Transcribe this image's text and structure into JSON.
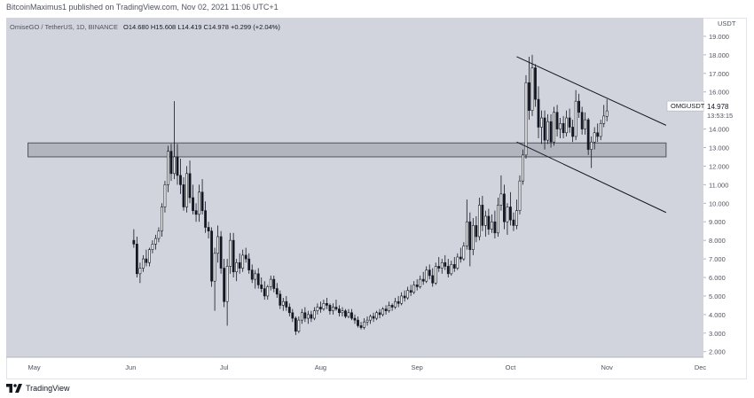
{
  "header": {
    "text": "BitcoinMaximus1 published on TradingView.com, Nov 02, 2021 11:06 UTC+1"
  },
  "footer": {
    "brand": "TradingView",
    "logo_icon": "tradingview-logo-icon"
  },
  "colors": {
    "plot_bg": "#d1d4dc",
    "candle_up": "#ffffff",
    "candle_down": "#131722",
    "wick": "#131722",
    "zone_fill": "#b2b5be",
    "zone_border": "#50535e",
    "channel_line": "#131722",
    "price_label_bg": "#ffffff"
  },
  "chart_data": {
    "type": "candlestick",
    "legend": {
      "name": "OmiseGO / TetherUS, 1D, BINANCE",
      "open": "14.680",
      "high": "15.608",
      "low": "14.419",
      "close": "14.978",
      "change": "+0.299 (+2.04%)"
    },
    "symbol_label": "OMGUSDT",
    "last_price": "14.978",
    "countdown": "13:53:15",
    "currency": "USDT",
    "y_axis": {
      "ticks": [
        "19.000",
        "18.000",
        "17.000",
        "16.000",
        "15.000",
        "14.000",
        "13.000",
        "12.000",
        "11.000",
        "10.000",
        "9.000",
        "8.000",
        "7.000",
        "6.000",
        "5.000",
        "4.000",
        "3.000",
        "2.000"
      ],
      "ylim": [
        1.7,
        20.0
      ]
    },
    "x_axis": {
      "ticks": [
        {
          "label": "May",
          "day": 0
        },
        {
          "label": "Jun",
          "day": 31
        },
        {
          "label": "Jul",
          "day": 61
        },
        {
          "label": "Aug",
          "day": 92
        },
        {
          "label": "Sep",
          "day": 123
        },
        {
          "label": "Oct",
          "day": 153
        },
        {
          "label": "Nov",
          "day": 184
        },
        {
          "label": "Dec",
          "day": 214
        }
      ],
      "day_range": [
        -9,
        215
      ]
    },
    "zone": {
      "y1": 12.5,
      "y2": 13.25,
      "day_start": -2,
      "day_end": 203
    },
    "channel": {
      "upper": {
        "day1": 155,
        "y1": 17.9,
        "day2": 203,
        "y2": 14.2
      },
      "lower": {
        "day1": 155,
        "y1": 13.3,
        "day2": 203,
        "y2": 9.5
      }
    },
    "candles": [
      [
        8.0,
        8.6,
        7.6,
        7.8
      ],
      [
        7.8,
        8.2,
        6.0,
        6.2
      ],
      [
        6.2,
        6.8,
        5.7,
        6.5
      ],
      [
        6.5,
        7.2,
        6.3,
        7.0
      ],
      [
        7.0,
        7.5,
        6.6,
        6.8
      ],
      [
        6.8,
        7.6,
        6.6,
        7.5
      ],
      [
        7.5,
        8.0,
        7.3,
        7.8
      ],
      [
        7.8,
        8.3,
        7.5,
        8.1
      ],
      [
        8.1,
        8.7,
        7.9,
        8.5
      ],
      [
        8.5,
        10.0,
        8.2,
        9.8
      ],
      [
        9.8,
        11.2,
        9.5,
        11.0
      ],
      [
        11.0,
        13.1,
        10.6,
        12.8
      ],
      [
        12.8,
        13.2,
        11.2,
        11.6
      ],
      [
        11.6,
        15.5,
        11.3,
        12.5
      ],
      [
        12.5,
        13.2,
        11.0,
        11.5
      ],
      [
        11.5,
        12.4,
        10.5,
        11.0
      ],
      [
        11.0,
        11.4,
        9.6,
        9.8
      ],
      [
        9.8,
        12.0,
        9.5,
        11.6
      ],
      [
        11.6,
        12.3,
        10.0,
        10.3
      ],
      [
        10.3,
        11.0,
        9.4,
        9.6
      ],
      [
        9.6,
        10.0,
        9.0,
        9.4
      ],
      [
        9.4,
        11.0,
        9.0,
        10.6
      ],
      [
        10.6,
        11.3,
        9.4,
        9.6
      ],
      [
        9.6,
        10.1,
        8.4,
        8.7
      ],
      [
        8.7,
        9.0,
        8.1,
        8.5
      ],
      [
        8.5,
        8.7,
        5.5,
        5.8
      ],
      [
        5.8,
        7.6,
        4.2,
        7.3
      ],
      [
        7.3,
        8.8,
        6.8,
        8.2
      ],
      [
        8.2,
        8.5,
        6.2,
        6.5
      ],
      [
        6.5,
        7.0,
        4.4,
        4.7
      ],
      [
        4.7,
        7.0,
        3.4,
        6.6
      ],
      [
        6.6,
        8.4,
        6.2,
        8.0
      ],
      [
        8.0,
        8.4,
        6.0,
        6.3
      ],
      [
        6.3,
        7.0,
        5.8,
        6.8
      ],
      [
        6.8,
        7.3,
        6.2,
        6.5
      ],
      [
        6.5,
        7.5,
        6.3,
        7.2
      ],
      [
        7.2,
        7.6,
        6.8,
        7.0
      ],
      [
        7.0,
        7.3,
        6.2,
        6.4
      ],
      [
        6.4,
        6.7,
        5.7,
        5.9
      ],
      [
        5.9,
        6.4,
        5.4,
        6.2
      ],
      [
        6.2,
        6.5,
        5.4,
        5.6
      ],
      [
        5.6,
        6.0,
        5.2,
        5.4
      ],
      [
        5.4,
        5.8,
        4.8,
        5.0
      ],
      [
        5.0,
        5.6,
        4.8,
        5.5
      ],
      [
        5.5,
        6.1,
        5.3,
        5.9
      ],
      [
        5.9,
        6.1,
        5.2,
        5.4
      ],
      [
        5.4,
        5.7,
        4.9,
        5.1
      ],
      [
        5.1,
        5.3,
        4.3,
        4.5
      ],
      [
        4.5,
        4.9,
        4.2,
        4.7
      ],
      [
        4.7,
        5.0,
        4.2,
        4.4
      ],
      [
        4.4,
        4.6,
        3.9,
        4.1
      ],
      [
        4.1,
        4.3,
        3.6,
        3.8
      ],
      [
        3.8,
        3.9,
        2.9,
        3.1
      ],
      [
        3.1,
        3.9,
        3.0,
        3.7
      ],
      [
        3.7,
        4.3,
        3.5,
        4.1
      ],
      [
        4.1,
        4.4,
        3.6,
        3.8
      ],
      [
        3.8,
        4.2,
        3.5,
        4.0
      ],
      [
        4.0,
        4.2,
        3.6,
        3.8
      ],
      [
        3.8,
        4.4,
        3.7,
        4.2
      ],
      [
        4.2,
        4.6,
        4.0,
        4.4
      ],
      [
        4.4,
        4.7,
        4.1,
        4.3
      ],
      [
        4.3,
        4.8,
        4.2,
        4.6
      ],
      [
        4.6,
        4.9,
        4.3,
        4.5
      ],
      [
        4.5,
        4.6,
        4.0,
        4.2
      ],
      [
        4.2,
        4.6,
        4.0,
        4.4
      ],
      [
        4.4,
        4.8,
        4.2,
        4.3
      ],
      [
        4.3,
        4.5,
        3.9,
        4.1
      ],
      [
        4.1,
        4.4,
        3.9,
        4.2
      ],
      [
        4.2,
        4.3,
        3.8,
        3.9
      ],
      [
        3.9,
        4.3,
        3.8,
        4.1
      ],
      [
        4.1,
        4.3,
        3.7,
        3.8
      ],
      [
        3.8,
        4.0,
        3.5,
        3.7
      ],
      [
        3.7,
        3.9,
        3.3,
        3.4
      ],
      [
        3.4,
        3.6,
        3.2,
        3.3
      ],
      [
        3.3,
        3.8,
        3.2,
        3.6
      ],
      [
        3.6,
        3.9,
        3.4,
        3.7
      ],
      [
        3.7,
        4.0,
        3.5,
        3.9
      ],
      [
        3.9,
        4.1,
        3.6,
        3.8
      ],
      [
        3.8,
        4.2,
        3.7,
        4.1
      ],
      [
        4.1,
        4.3,
        3.8,
        4.0
      ],
      [
        4.0,
        4.4,
        3.9,
        4.3
      ],
      [
        4.3,
        4.5,
        4.0,
        4.2
      ],
      [
        4.2,
        4.7,
        4.1,
        4.5
      ],
      [
        4.5,
        4.6,
        4.2,
        4.4
      ],
      [
        4.4,
        4.9,
        4.3,
        4.7
      ],
      [
        4.7,
        5.0,
        4.4,
        4.6
      ],
      [
        4.6,
        5.2,
        4.5,
        5.0
      ],
      [
        5.0,
        5.3,
        4.7,
        4.9
      ],
      [
        4.9,
        5.5,
        4.8,
        5.3
      ],
      [
        5.3,
        5.6,
        5.0,
        5.2
      ],
      [
        5.2,
        5.8,
        5.1,
        5.6
      ],
      [
        5.6,
        5.9,
        5.3,
        5.5
      ],
      [
        5.5,
        6.1,
        5.4,
        5.9
      ],
      [
        5.9,
        6.3,
        5.6,
        5.8
      ],
      [
        5.8,
        6.6,
        5.7,
        6.4
      ],
      [
        6.4,
        6.7,
        5.9,
        6.1
      ],
      [
        6.1,
        6.5,
        5.5,
        5.7
      ],
      [
        5.7,
        6.8,
        5.6,
        6.6
      ],
      [
        6.6,
        7.1,
        6.3,
        6.5
      ],
      [
        6.5,
        7.0,
        6.2,
        6.8
      ],
      [
        6.8,
        7.2,
        6.4,
        6.6
      ],
      [
        6.6,
        7.0,
        6.0,
        6.2
      ],
      [
        6.2,
        6.9,
        6.1,
        6.7
      ],
      [
        6.7,
        7.1,
        6.3,
        6.5
      ],
      [
        6.5,
        7.3,
        6.4,
        7.1
      ],
      [
        7.1,
        7.6,
        6.8,
        7.0
      ],
      [
        7.0,
        7.9,
        6.9,
        7.7
      ],
      [
        7.7,
        10.2,
        7.5,
        9.0
      ],
      [
        9.0,
        9.5,
        6.6,
        7.5
      ],
      [
        7.5,
        9.2,
        7.2,
        8.8
      ],
      [
        8.8,
        9.3,
        7.9,
        8.2
      ],
      [
        8.2,
        10.3,
        8.0,
        9.9
      ],
      [
        9.9,
        10.4,
        8.5,
        8.8
      ],
      [
        8.8,
        9.6,
        8.2,
        9.3
      ],
      [
        9.3,
        9.7,
        8.3,
        8.6
      ],
      [
        8.6,
        9.4,
        8.4,
        9.0
      ],
      [
        9.0,
        9.6,
        8.1,
        8.4
      ],
      [
        8.4,
        10.3,
        8.2,
        9.9
      ],
      [
        9.9,
        11.5,
        9.6,
        10.5
      ],
      [
        10.5,
        11.0,
        8.6,
        9.0
      ],
      [
        9.0,
        10.0,
        8.3,
        9.8
      ],
      [
        9.8,
        10.6,
        8.8,
        9.1
      ],
      [
        9.1,
        9.5,
        8.5,
        8.8
      ],
      [
        8.8,
        10.2,
        8.6,
        9.6
      ],
      [
        9.6,
        11.5,
        9.4,
        11.2
      ],
      [
        11.2,
        12.9,
        11.0,
        12.6
      ],
      [
        12.6,
        16.9,
        12.4,
        16.5
      ],
      [
        16.5,
        17.9,
        14.5,
        15.0
      ],
      [
        15.0,
        18.0,
        14.7,
        17.3
      ],
      [
        17.3,
        17.5,
        15.2,
        15.6
      ],
      [
        15.6,
        16.3,
        13.5,
        14.1
      ],
      [
        14.1,
        15.0,
        13.2,
        14.6
      ],
      [
        14.6,
        15.0,
        12.9,
        13.4
      ],
      [
        13.4,
        14.8,
        13.2,
        14.4
      ],
      [
        14.4,
        14.8,
        13.0,
        13.3
      ],
      [
        13.3,
        15.2,
        13.1,
        14.9
      ],
      [
        14.9,
        15.3,
        13.6,
        14.0
      ],
      [
        14.0,
        14.6,
        13.5,
        14.3
      ],
      [
        14.3,
        14.7,
        13.5,
        13.8
      ],
      [
        13.8,
        15.0,
        13.6,
        14.6
      ],
      [
        14.6,
        15.1,
        13.8,
        14.1
      ],
      [
        14.1,
        14.5,
        13.3,
        13.6
      ],
      [
        13.6,
        16.1,
        13.4,
        15.5
      ],
      [
        15.5,
        15.9,
        14.6,
        14.9
      ],
      [
        14.9,
        15.2,
        13.7,
        14.0
      ],
      [
        14.0,
        14.9,
        13.7,
        14.5
      ],
      [
        14.5,
        14.6,
        12.6,
        12.9
      ],
      [
        12.9,
        13.6,
        11.9,
        13.3
      ],
      [
        13.3,
        14.1,
        12.9,
        13.8
      ],
      [
        13.8,
        14.3,
        13.3,
        13.6
      ],
      [
        13.6,
        14.5,
        13.4,
        14.3
      ],
      [
        14.3,
        15.3,
        14.1,
        14.7
      ],
      [
        14.68,
        15.608,
        14.419,
        14.978
      ]
    ]
  }
}
